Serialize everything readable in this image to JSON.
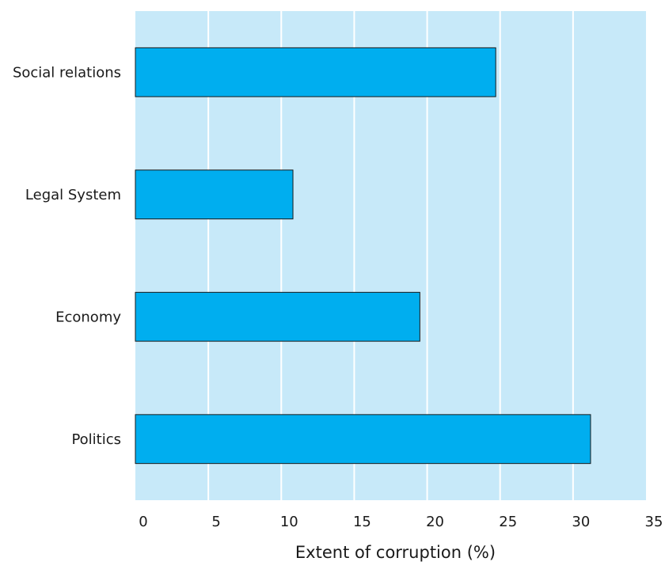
{
  "chart_data": {
    "type": "bar",
    "orientation": "horizontal",
    "categories": [
      "Social relations",
      "Legal System",
      "Economy",
      "Politics"
    ],
    "values": [
      24.7,
      10.8,
      19.5,
      31.2
    ],
    "title": "",
    "xlabel": "Extent of corruption (%)",
    "ylabel": "",
    "xlim": [
      0,
      35
    ],
    "xticks": [
      0,
      5,
      10,
      15,
      20,
      25,
      30,
      35
    ],
    "grid": "vertical",
    "colors": {
      "plot_background": "#c7e9f9",
      "bar_fill": "#00aeef",
      "bar_stroke": "#1a1a1a",
      "gridline": "#ffffff"
    }
  }
}
